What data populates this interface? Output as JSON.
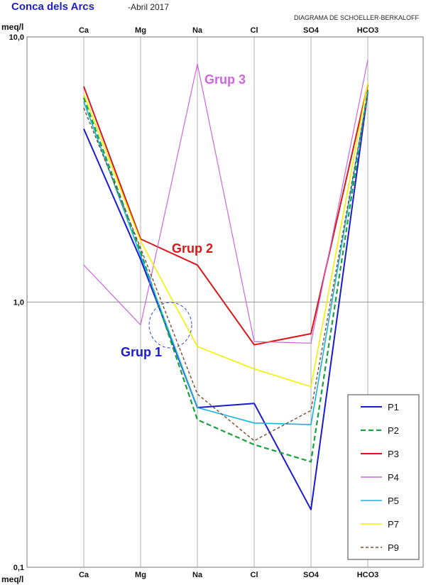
{
  "chart_data": {
    "type": "line",
    "title": "Conca dels Arcs",
    "subtitle": "-Abril 2017",
    "diagram_name": "DIAGRAMA DE SCHOELLER-BERKALOFF",
    "ylabel": "meq/l",
    "yscale": "log",
    "ylim": [
      0.1,
      10.0
    ],
    "yticks": [
      "10,0",
      "1,0",
      "0,1"
    ],
    "categories": [
      "Ca",
      "Mg",
      "Na",
      "Cl",
      "SO4",
      "HCO3"
    ],
    "grid": true,
    "legend_position": "bottom-right",
    "series": [
      {
        "name": "P1",
        "color": "#1a1ad0",
        "dash": "solid",
        "width": 2,
        "values": [
          4.5,
          1.45,
          0.4,
          0.415,
          0.165,
          6.2
        ]
      },
      {
        "name": "P2",
        "color": "#1aa040",
        "dash": "dashed",
        "width": 2.2,
        "values": [
          5.9,
          1.55,
          0.36,
          0.29,
          0.25,
          6.3
        ]
      },
      {
        "name": "P3",
        "color": "#d81818",
        "dash": "solid",
        "width": 2,
        "values": [
          6.5,
          1.73,
          1.38,
          0.69,
          0.76,
          6.6
        ]
      },
      {
        "name": "P4",
        "color": "#cc66dd",
        "dash": "solid",
        "width": 1.2,
        "values": [
          1.38,
          0.82,
          7.9,
          0.71,
          0.7,
          8.2
        ]
      },
      {
        "name": "P5",
        "color": "#18b4d8",
        "dash": "solid",
        "width": 1.6,
        "values": [
          5.7,
          1.5,
          0.4,
          0.35,
          0.345,
          6.2
        ]
      },
      {
        "name": "P7",
        "color": "#f2f200",
        "dash": "solid",
        "width": 1.6,
        "values": [
          6.1,
          1.7,
          0.68,
          0.56,
          0.48,
          6.7
        ]
      },
      {
        "name": "P9",
        "color": "#7a4a2a",
        "dash": "short-dash",
        "width": 1.4,
        "values": [
          5.4,
          1.6,
          0.45,
          0.3,
          0.39,
          6.1
        ]
      }
    ],
    "annotations": [
      {
        "text": "Grup 3",
        "color": "#cc66dd"
      },
      {
        "text": "Grup 2",
        "color": "#d81818"
      },
      {
        "text": "Grup 1",
        "color": "#1a1ad0"
      }
    ]
  }
}
